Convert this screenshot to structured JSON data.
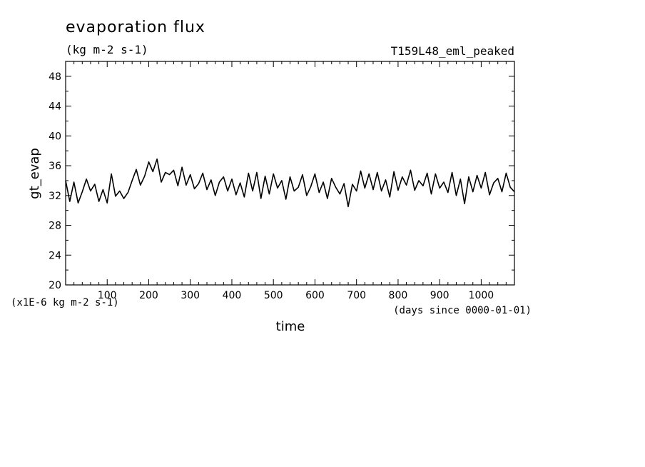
{
  "chart_data": {
    "type": "line",
    "title": "evaporation flux",
    "subtitle": "(kg m-2 s-1)",
    "experiment": "T159L48_eml_peaked",
    "xlabel": "time",
    "ylabel": "gt_evap",
    "y_scale_note": "(x1E-6 kg m-2 s-1)",
    "x_unit_note": "(days since 0000-01-01)",
    "xlim": [
      0,
      1080
    ],
    "ylim": [
      20,
      50
    ],
    "x_ticks": [
      100,
      200,
      300,
      400,
      500,
      600,
      700,
      800,
      900,
      1000
    ],
    "y_ticks": [
      20,
      24,
      28,
      32,
      36,
      40,
      44,
      48
    ],
    "grid": false,
    "line_color": "#000000",
    "series": [
      {
        "values_x": [
          0,
          10,
          20,
          30,
          40,
          50,
          60,
          70,
          80,
          90,
          100,
          110,
          120,
          130,
          140,
          150,
          160,
          170,
          180,
          190,
          200,
          210,
          220,
          230,
          240,
          250,
          260,
          270,
          280,
          290,
          300,
          310,
          320,
          330,
          340,
          350,
          360,
          370,
          380,
          390,
          400,
          410,
          420,
          430,
          440,
          450,
          460,
          470,
          480,
          490,
          500,
          510,
          520,
          530,
          540,
          550,
          560,
          570,
          580,
          590,
          600,
          610,
          620,
          630,
          640,
          650,
          660,
          670,
          680,
          690,
          700,
          710,
          720,
          730,
          740,
          750,
          760,
          770,
          780,
          790,
          800,
          810,
          820,
          830,
          840,
          850,
          860,
          870,
          880,
          890,
          900,
          910,
          920,
          930,
          940,
          950,
          960,
          970,
          980,
          990,
          1000,
          1010,
          1020,
          1030,
          1040,
          1050,
          1060,
          1070,
          1080
        ],
        "values_y": [
          34.0,
          31.2,
          33.8,
          31.0,
          32.5,
          34.2,
          32.6,
          33.5,
          31.2,
          32.8,
          31.0,
          34.9,
          31.9,
          32.6,
          31.6,
          32.4,
          34.0,
          35.5,
          33.4,
          34.6,
          36.5,
          35.2,
          36.9,
          33.8,
          35.1,
          34.8,
          35.4,
          33.3,
          35.8,
          33.4,
          34.8,
          32.9,
          33.6,
          35.0,
          32.8,
          34.1,
          32.0,
          33.8,
          34.5,
          32.6,
          34.2,
          32.1,
          33.7,
          31.8,
          35.0,
          32.6,
          35.1,
          31.6,
          34.6,
          32.2,
          34.9,
          33.0,
          34.0,
          31.5,
          34.5,
          32.6,
          33.1,
          34.8,
          32.0,
          33.2,
          34.9,
          32.4,
          33.8,
          31.6,
          34.3,
          33.1,
          32.2,
          33.6,
          30.5,
          33.5,
          32.6,
          35.3,
          33.0,
          34.9,
          32.8,
          35.1,
          32.6,
          34.1,
          31.8,
          35.2,
          32.7,
          34.5,
          33.4,
          35.4,
          32.7,
          34.0,
          33.3,
          35.0,
          32.2,
          34.9,
          33.0,
          33.8,
          32.4,
          35.1,
          32.0,
          34.2,
          30.9,
          34.5,
          32.5,
          34.7,
          33.0,
          35.1,
          32.1,
          33.7,
          34.3,
          32.5,
          35.0,
          33.1,
          32.5
        ]
      }
    ]
  }
}
